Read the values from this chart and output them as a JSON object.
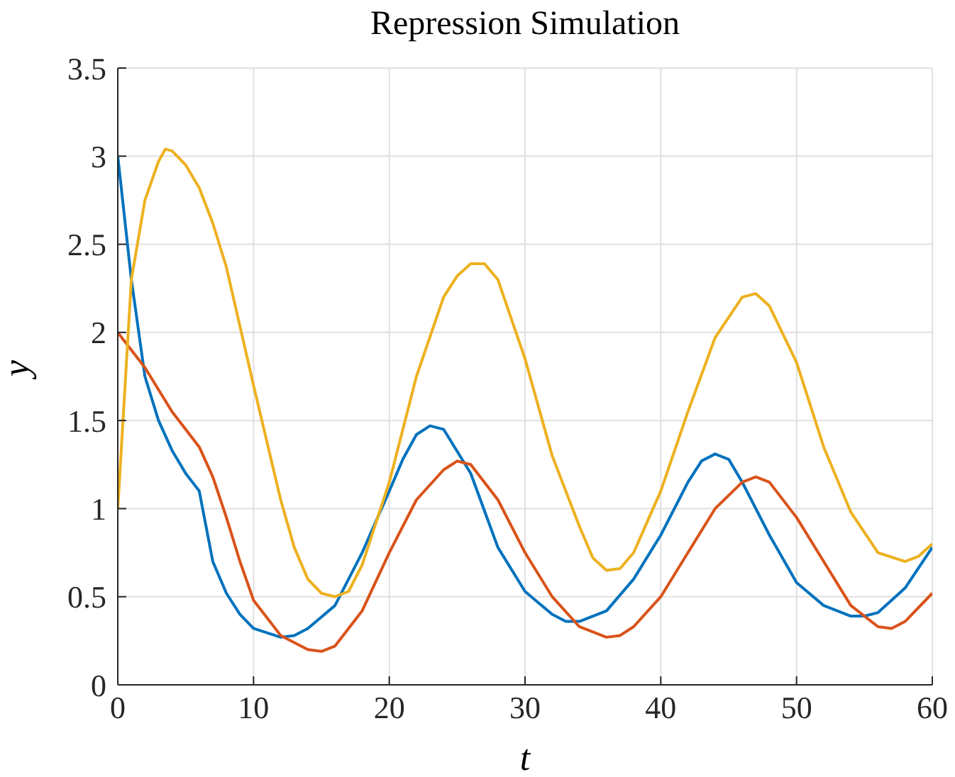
{
  "chart_data": {
    "type": "line",
    "title": "Repression Simulation",
    "xlabel": "t",
    "ylabel": "y",
    "xlim": [
      0,
      60
    ],
    "xticks": [
      0,
      10,
      20,
      30,
      40,
      50,
      60
    ],
    "ylim": [
      0,
      3.5
    ],
    "yticks": [
      0,
      0.5,
      1,
      1.5,
      2,
      2.5,
      3,
      3.5
    ],
    "grid": true,
    "marker": "none",
    "line_style": "solid",
    "series": [
      {
        "color": "#0072bd",
        "x": [
          0,
          1,
          2,
          3,
          4,
          5,
          5.5,
          6,
          7,
          8,
          9,
          10,
          12,
          13,
          14,
          16,
          18,
          20,
          21,
          22,
          23,
          24,
          26,
          28,
          30,
          32,
          33,
          34,
          36,
          38,
          40,
          42,
          43,
          44,
          45,
          46,
          48,
          50,
          52,
          54,
          55,
          56,
          58,
          60
        ],
        "values": [
          3.0,
          2.3,
          1.75,
          1.5,
          1.33,
          1.2,
          1.15,
          1.1,
          0.7,
          0.52,
          0.4,
          0.32,
          0.27,
          0.28,
          0.32,
          0.45,
          0.75,
          1.1,
          1.28,
          1.42,
          1.47,
          1.45,
          1.2,
          0.78,
          0.53,
          0.4,
          0.36,
          0.36,
          0.42,
          0.6,
          0.85,
          1.15,
          1.27,
          1.31,
          1.28,
          1.15,
          0.85,
          0.58,
          0.45,
          0.39,
          0.39,
          0.41,
          0.55,
          0.78
        ]
      },
      {
        "color": "#d95319",
        "x": [
          0,
          2,
          4,
          6,
          7,
          8,
          9,
          10,
          12,
          14,
          15,
          16,
          18,
          20,
          22,
          24,
          25,
          26,
          28,
          30,
          32,
          34,
          36,
          37,
          38,
          40,
          42,
          44,
          46,
          47,
          48,
          50,
          52,
          54,
          56,
          57,
          58,
          60
        ],
        "values": [
          2.0,
          1.8,
          1.55,
          1.35,
          1.18,
          0.95,
          0.7,
          0.48,
          0.28,
          0.2,
          0.19,
          0.22,
          0.42,
          0.75,
          1.05,
          1.22,
          1.27,
          1.25,
          1.05,
          0.75,
          0.5,
          0.33,
          0.27,
          0.28,
          0.33,
          0.5,
          0.75,
          1.0,
          1.15,
          1.18,
          1.15,
          0.95,
          0.7,
          0.45,
          0.33,
          0.32,
          0.36,
          0.52
        ]
      },
      {
        "color": "#edb120",
        "x": [
          0,
          1,
          2,
          3,
          3.5,
          4,
          5,
          6,
          7,
          8,
          10,
          12,
          13,
          14,
          15,
          16,
          17,
          18,
          20,
          22,
          24,
          25,
          26,
          27,
          28,
          30,
          32,
          34,
          35,
          36,
          37,
          38,
          40,
          42,
          44,
          46,
          47,
          48,
          50,
          52,
          54,
          56,
          58,
          59,
          60
        ],
        "values": [
          1.0,
          2.3,
          2.75,
          2.97,
          3.04,
          3.03,
          2.95,
          2.82,
          2.62,
          2.37,
          1.7,
          1.05,
          0.78,
          0.6,
          0.52,
          0.5,
          0.53,
          0.68,
          1.15,
          1.75,
          2.2,
          2.32,
          2.39,
          2.39,
          2.3,
          1.85,
          1.3,
          0.9,
          0.72,
          0.65,
          0.66,
          0.75,
          1.1,
          1.55,
          1.97,
          2.2,
          2.22,
          2.15,
          1.83,
          1.35,
          0.98,
          0.75,
          0.7,
          0.73,
          0.8
        ]
      }
    ]
  }
}
